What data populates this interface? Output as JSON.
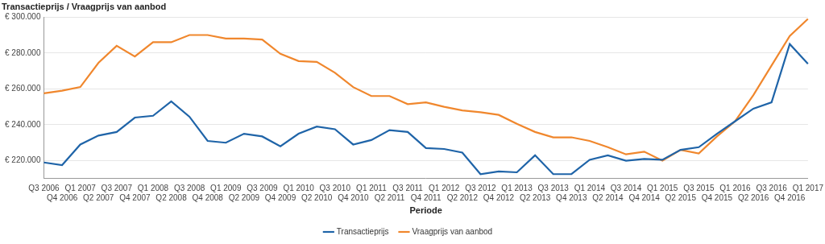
{
  "chart_data": {
    "type": "line",
    "title": "Transactieprijs / Vraagprijs van aanbod",
    "x_label": "Periode",
    "categories": [
      "Q3 2006",
      "Q4 2006",
      "Q1 2007",
      "Q2 2007",
      "Q3 2007",
      "Q4 2007",
      "Q1 2008",
      "Q2 2008",
      "Q3 2008",
      "Q4 2008",
      "Q1 2009",
      "Q2 2009",
      "Q3 2009",
      "Q4 2009",
      "Q1 2010",
      "Q2 2010",
      "Q3 2010",
      "Q4 2010",
      "Q1 2011",
      "Q2 2011",
      "Q3 2011",
      "Q4 2011",
      "Q1 2012",
      "Q2 2012",
      "Q3 2012",
      "Q4 2012",
      "Q1 2013",
      "Q2 2013",
      "Q3 2013",
      "Q4 2013",
      "Q1 2014",
      "Q2 2014",
      "Q3 2014",
      "Q4 2014",
      "Q1 2015",
      "Q2 2015",
      "Q3 2015",
      "Q4 2015",
      "Q1 2016",
      "Q2 2016",
      "Q3 2016",
      "Q4 2016",
      "Q1 2017"
    ],
    "series": [
      {
        "name": "Transactieprijs",
        "color": "#1f64a8",
        "values": [
          219000,
          217500,
          229000,
          234000,
          236000,
          244000,
          245000,
          253000,
          244500,
          231000,
          230000,
          235000,
          233500,
          228000,
          235000,
          239000,
          237500,
          229000,
          231500,
          237000,
          236000,
          227000,
          226500,
          224500,
          212500,
          214000,
          213500,
          223000,
          212500,
          212500,
          220500,
          223000,
          220000,
          221000,
          220500,
          226000,
          227500,
          235000,
          242000,
          249000,
          252500,
          285000,
          274000
        ]
      },
      {
        "name": "Vraagprijs van aanbod",
        "color": "#f0872d",
        "values": [
          257500,
          259000,
          261000,
          274500,
          284000,
          278000,
          286000,
          286000,
          290000,
          290000,
          288000,
          288000,
          287500,
          279500,
          275500,
          275000,
          269000,
          261000,
          256000,
          256000,
          251500,
          252500,
          250000,
          248000,
          247000,
          245500,
          240500,
          236000,
          233000,
          233000,
          231000,
          227500,
          223500,
          225000,
          220000,
          226000,
          224000,
          233500,
          242000,
          256500,
          273000,
          289500,
          299000
        ]
      }
    ],
    "ylim": [
      210000,
      300000
    ],
    "yticks": [
      {
        "value": 220000,
        "label": "€ 220.000"
      },
      {
        "value": 240000,
        "label": "€ 240.000"
      },
      {
        "value": 260000,
        "label": "€ 260.000"
      },
      {
        "value": 280000,
        "label": "€ 280.000"
      },
      {
        "value": 300000,
        "label": "€ 300.000"
      }
    ],
    "grid": true,
    "legend": "bottom"
  }
}
